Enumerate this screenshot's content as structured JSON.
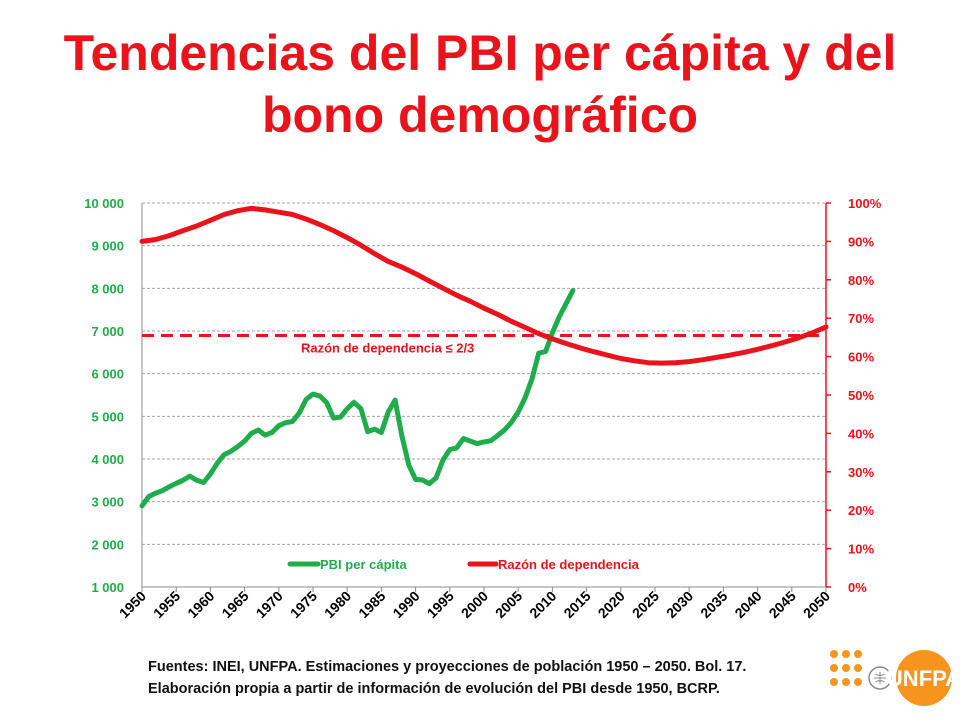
{
  "slide": {
    "title_line1": "Tendencias del PBI per cápita y del",
    "title_line2": "bono demográfico",
    "source_line1": "Fuentes: INEI, UNFPA. Estimaciones y proyecciones de población 1950 – 2050. Bol. 17.",
    "source_line2": "Elaboración propia a partir de información de evolución del PBI desde 1950, BCRP.",
    "logo_text": "UNFPA"
  },
  "colors": {
    "title": "#e8131b",
    "pbi": "#1fac4b",
    "dependency": "#e8131b",
    "left_axis": "#1fac4b",
    "right_axis": "#e8131b",
    "logo_orange": "#f7941d"
  },
  "chart_data": {
    "type": "line",
    "x_ticks": [
      "1950",
      "1955",
      "1960",
      "1965",
      "1970",
      "1975",
      "1980",
      "1985",
      "1990",
      "1995",
      "2000",
      "2005",
      "2010",
      "2015",
      "2020",
      "2025",
      "2030",
      "2035",
      "2040",
      "2045",
      "2050"
    ],
    "xlim": [
      1950,
      2050
    ],
    "y_left": {
      "lim": [
        1000,
        10000
      ],
      "ticks": [
        "1 000",
        "2 000",
        "3 000",
        "4 000",
        "5 000",
        "6 000",
        "7 000",
        "8 000",
        "9 000",
        "10 000"
      ]
    },
    "y_right": {
      "lim": [
        0,
        100
      ],
      "ticks": [
        "0%",
        "10%",
        "20%",
        "30%",
        "40%",
        "50%",
        "60%",
        "70%",
        "80%",
        "90%",
        "100%"
      ]
    },
    "grid": true,
    "legend_position": "bottom",
    "threshold": {
      "label": "Razón de dependencia ≤ 2/3",
      "value_pct": 65.5
    },
    "series": [
      {
        "name": "PBI per cápita",
        "axis": "left",
        "x": [
          1950,
          1951,
          1952,
          1953,
          1954,
          1955,
          1956,
          1957,
          1958,
          1959,
          1960,
          1961,
          1962,
          1963,
          1964,
          1965,
          1966,
          1967,
          1968,
          1969,
          1970,
          1971,
          1972,
          1973,
          1974,
          1975,
          1976,
          1977,
          1978,
          1979,
          1980,
          1981,
          1982,
          1983,
          1984,
          1985,
          1986,
          1987,
          1988,
          1989,
          1990,
          1991,
          1992,
          1993,
          1994,
          1995,
          1996,
          1997,
          1998,
          1999,
          2000,
          2001,
          2002,
          2003,
          2004,
          2005,
          2006,
          2007,
          2008,
          2009,
          2010,
          2011,
          2012,
          2013
        ],
        "values": [
          2900,
          3120,
          3200,
          3260,
          3350,
          3430,
          3500,
          3600,
          3500,
          3450,
          3650,
          3900,
          4100,
          4180,
          4290,
          4420,
          4600,
          4680,
          4560,
          4620,
          4780,
          4850,
          4880,
          5080,
          5400,
          5520,
          5480,
          5320,
          4960,
          4980,
          5180,
          5330,
          5180,
          4640,
          4700,
          4620,
          5100,
          5380,
          4540,
          3860,
          3520,
          3510,
          3420,
          3560,
          3980,
          4220,
          4260,
          4480,
          4420,
          4360,
          4400,
          4430,
          4550,
          4680,
          4860,
          5100,
          5430,
          5870,
          6480,
          6520,
          6960,
          7330,
          7640,
          7950
        ]
      },
      {
        "name": "Razón de dependencia",
        "axis": "right",
        "x": [
          1950,
          1952,
          1954,
          1956,
          1958,
          1960,
          1962,
          1964,
          1966,
          1968,
          1970,
          1972,
          1974,
          1976,
          1978,
          1980,
          1982,
          1984,
          1986,
          1988,
          1990,
          1992,
          1994,
          1996,
          1998,
          2000,
          2002,
          2004,
          2006,
          2008,
          2010,
          2012,
          2014,
          2016,
          2018,
          2020,
          2022,
          2024,
          2026,
          2028,
          2030,
          2032,
          2034,
          2036,
          2038,
          2040,
          2042,
          2044,
          2046,
          2048,
          2050
        ],
        "values": [
          90,
          90.5,
          91.5,
          92.8,
          94,
          95.5,
          97,
          98,
          98.6,
          98.2,
          97.6,
          97,
          95.8,
          94.4,
          92.8,
          91,
          89,
          86.8,
          84.8,
          83.3,
          81.6,
          79.7,
          77.8,
          76,
          74.4,
          72.6,
          71,
          69.2,
          67.6,
          66,
          64.6,
          63.4,
          62.3,
          61.3,
          60.4,
          59.5,
          58.9,
          58.4,
          58.3,
          58.4,
          58.7,
          59.2,
          59.8,
          60.4,
          61.1,
          61.9,
          62.8,
          63.8,
          64.9,
          66.2,
          67.7
        ]
      }
    ]
  }
}
